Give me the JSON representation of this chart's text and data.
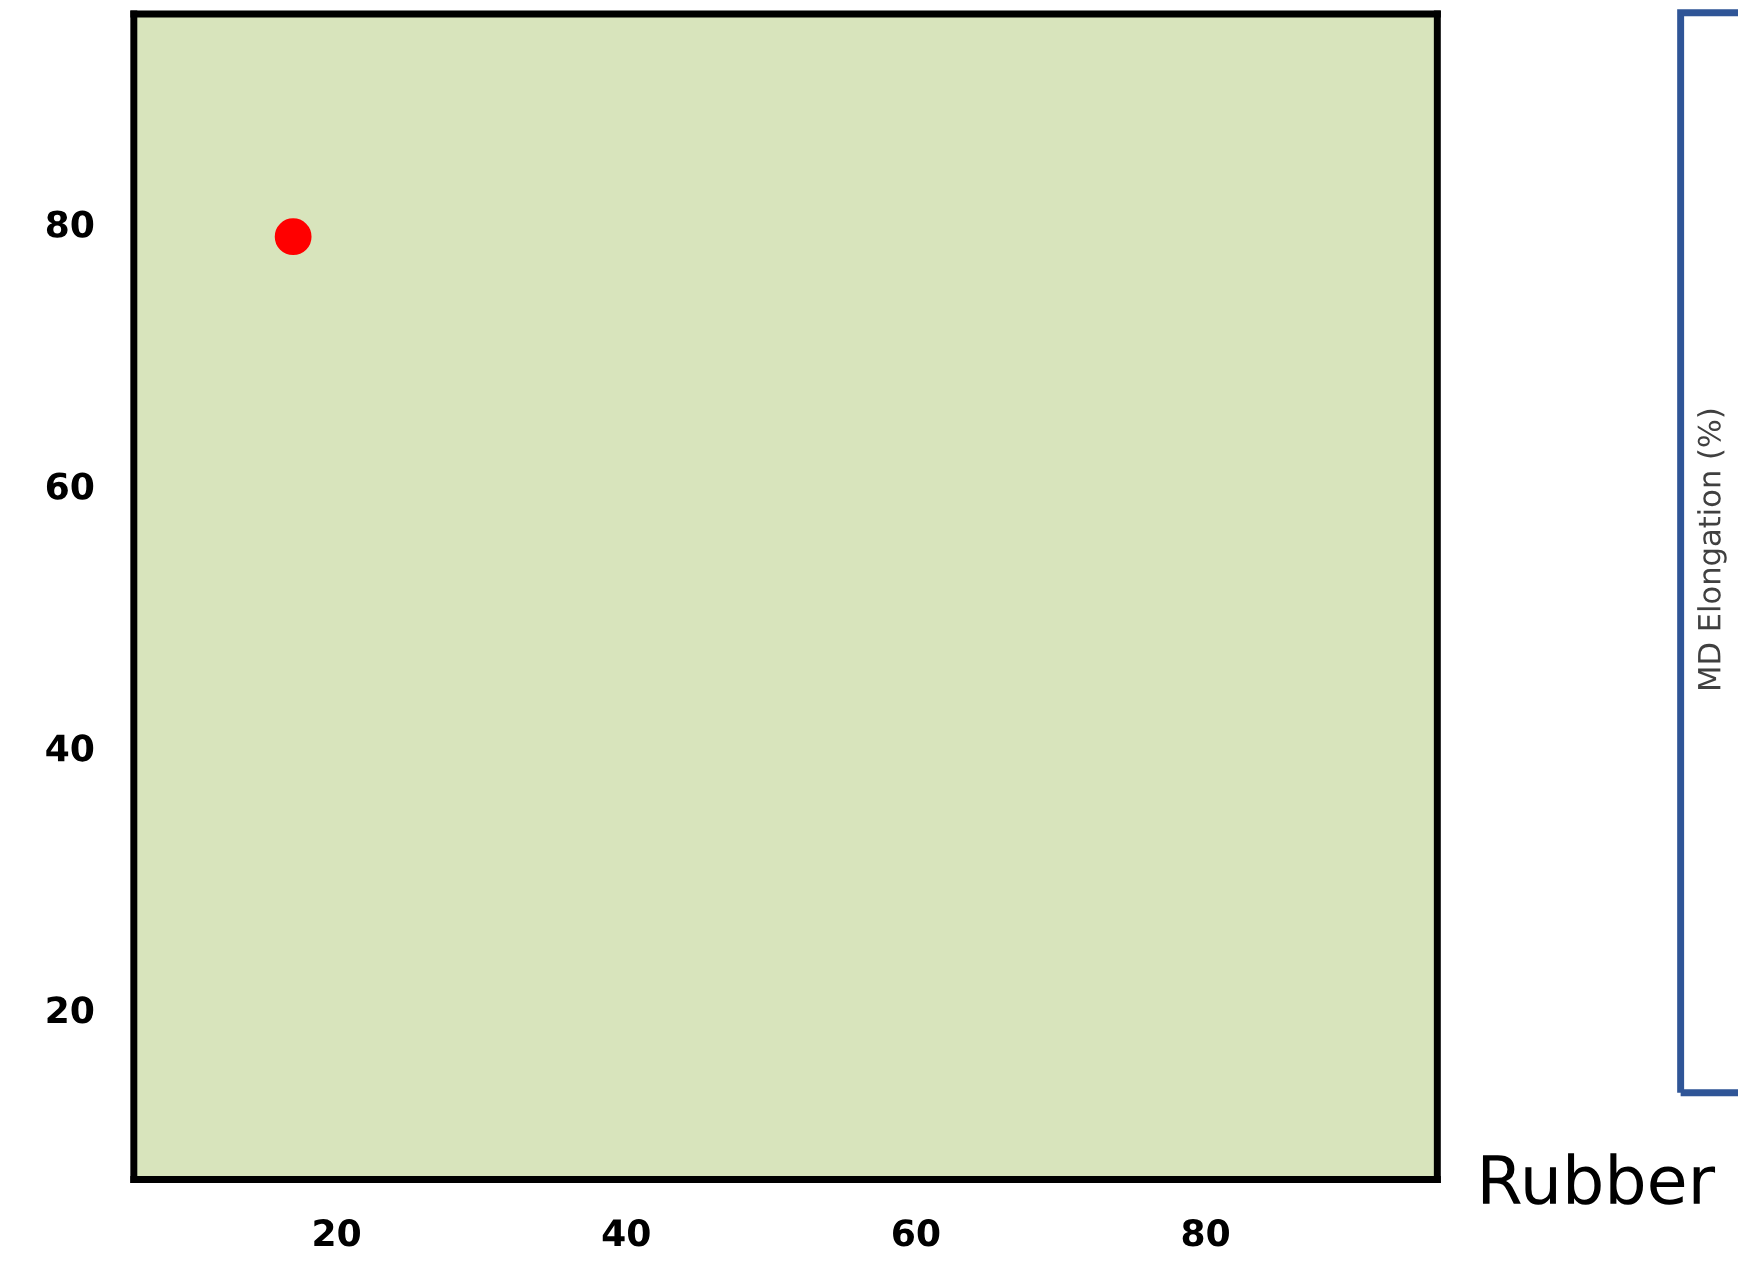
{
  "chart_data": {
    "type": "scatter",
    "series": [
      {
        "color": "#ff0000",
        "x": [
          17
        ],
        "values": [
          79
        ]
      }
    ],
    "xlim": [
      6,
      96
    ],
    "ylim": [
      7,
      96
    ],
    "xticks": [
      20,
      40,
      60,
      80
    ],
    "yticks": [
      20,
      40,
      60,
      80
    ],
    "xlabel": "Rubber",
    "annotations": [
      "MD Elongation (%)"
    ],
    "marker": "circle",
    "grid": false,
    "legend": false
  }
}
